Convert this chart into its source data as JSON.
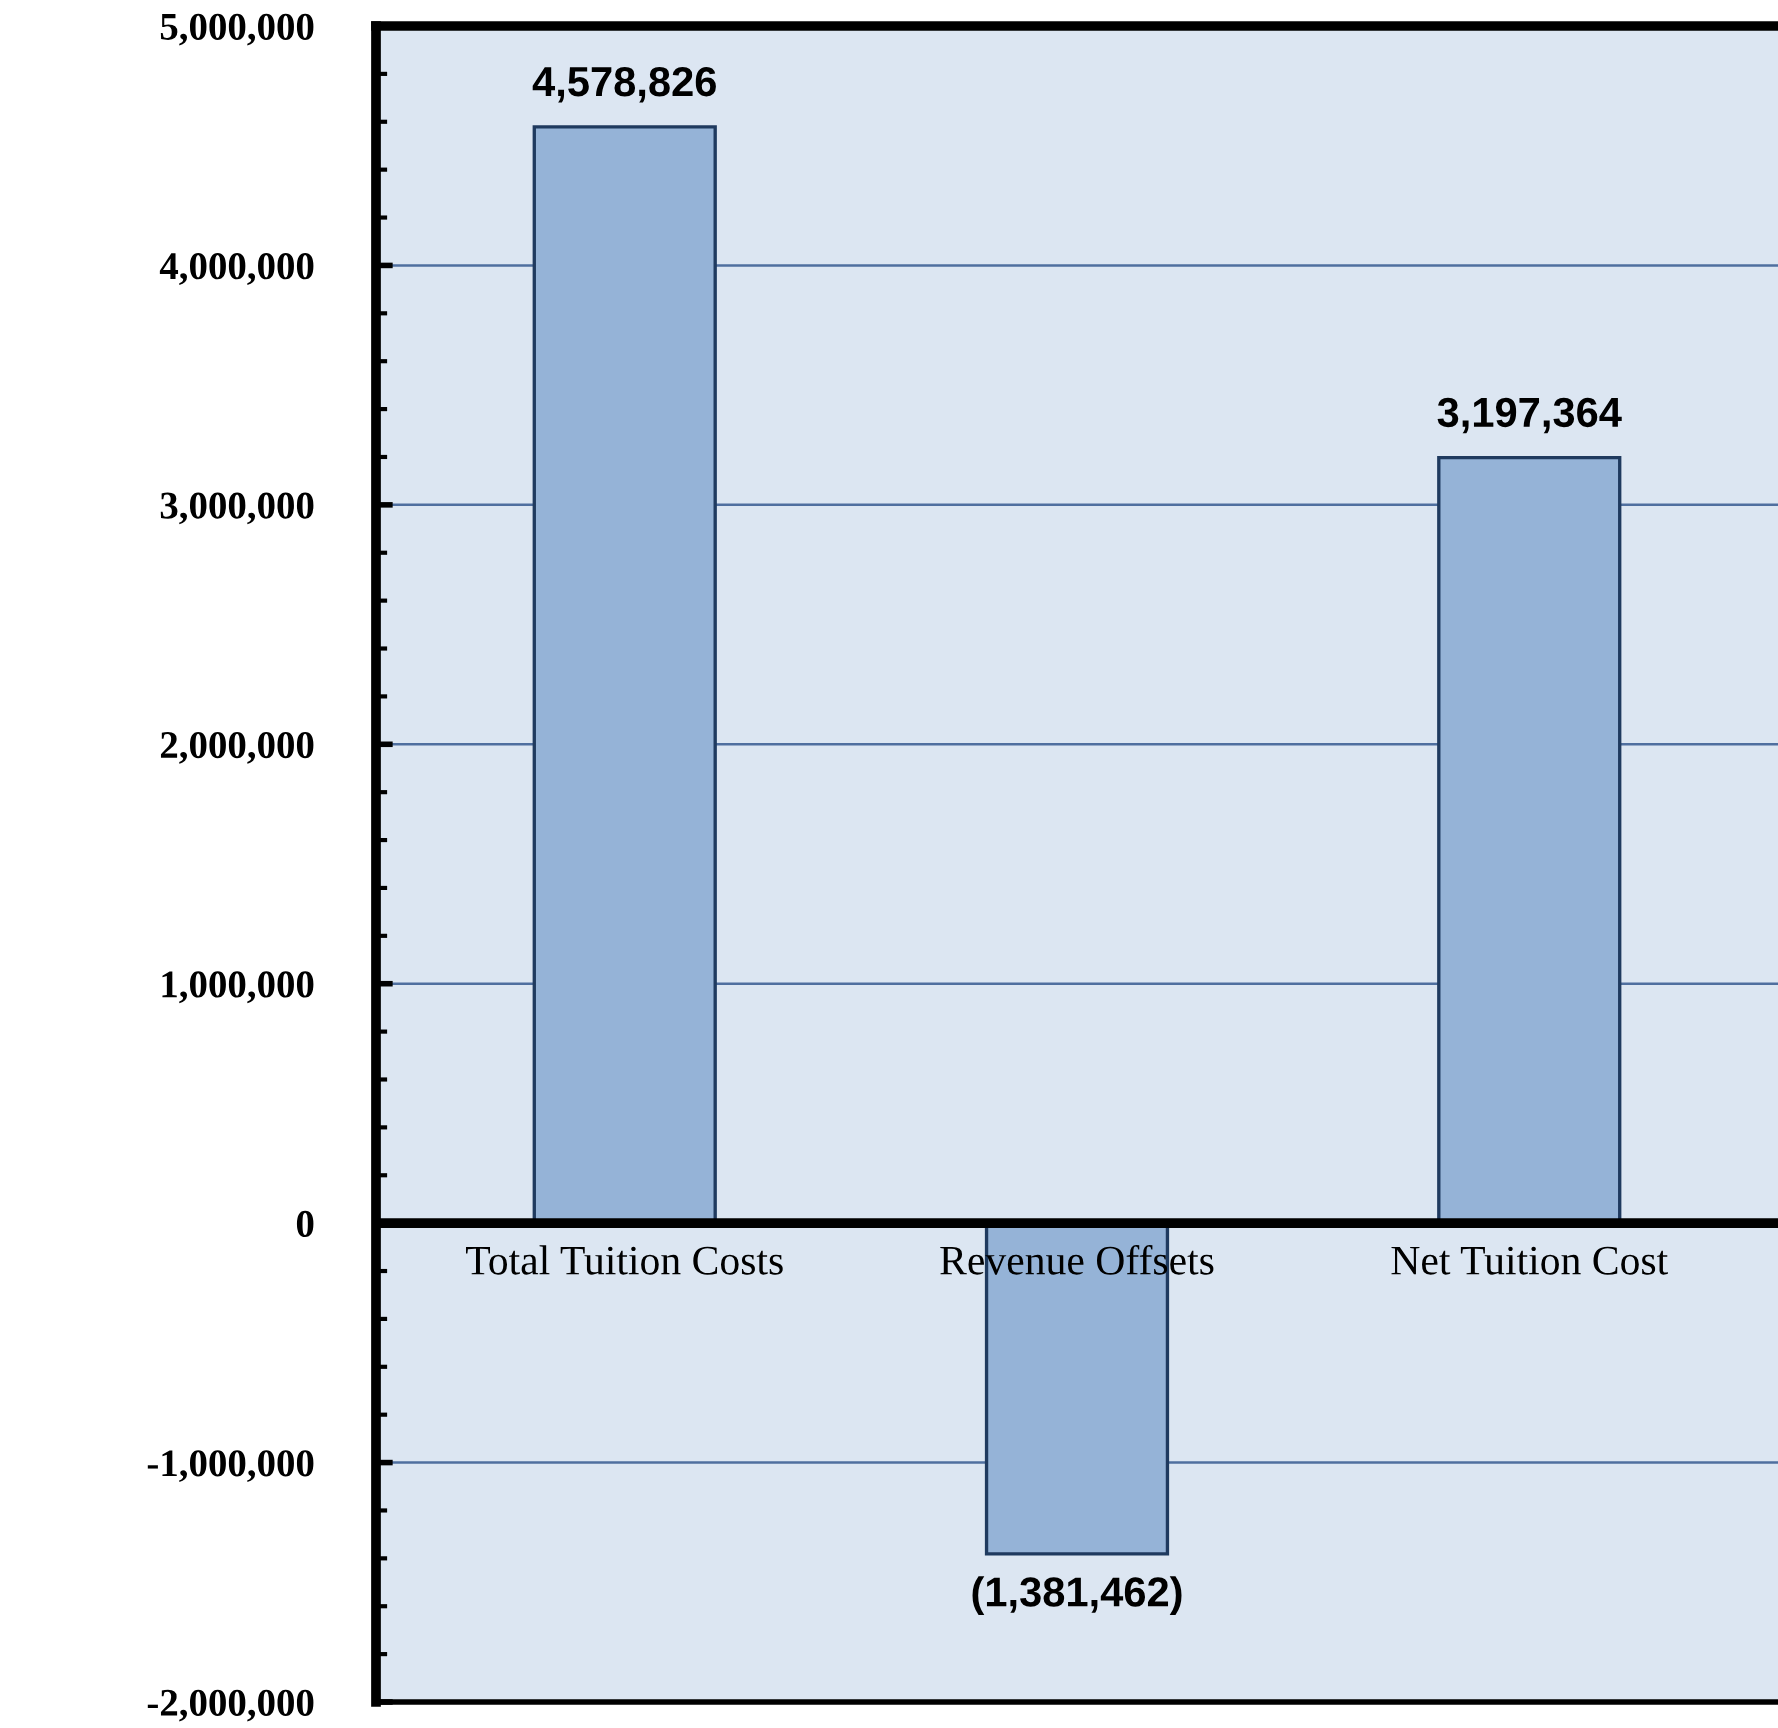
{
  "chart_data": {
    "type": "bar",
    "categories": [
      "Total Tuition Costs",
      "Revenue Offsets",
      "Net Tuition Cost"
    ],
    "values": [
      4578826,
      -1381462,
      3197364
    ],
    "value_labels": [
      "4,578,826",
      "(1,381,462)",
      "3,197,364"
    ],
    "color": "#95b3d7",
    "ylim": [
      -2000000,
      5000000
    ],
    "yticks": [
      {
        "value": -2000000,
        "label": "-2,000,000"
      },
      {
        "value": -1000000,
        "label": "-1,000,000"
      },
      0,
      {
        "value": 1000000,
        "label": "1,000,000"
      },
      {
        "value": 2000000,
        "label": "2,000,000"
      },
      {
        "value": 3000000,
        "label": "3,000,000"
      },
      {
        "value": 4000000,
        "label": "4,000,000"
      },
      {
        "value": 5000000,
        "label": "5,000,000"
      }
    ],
    "grid": "y",
    "legend": false
  }
}
